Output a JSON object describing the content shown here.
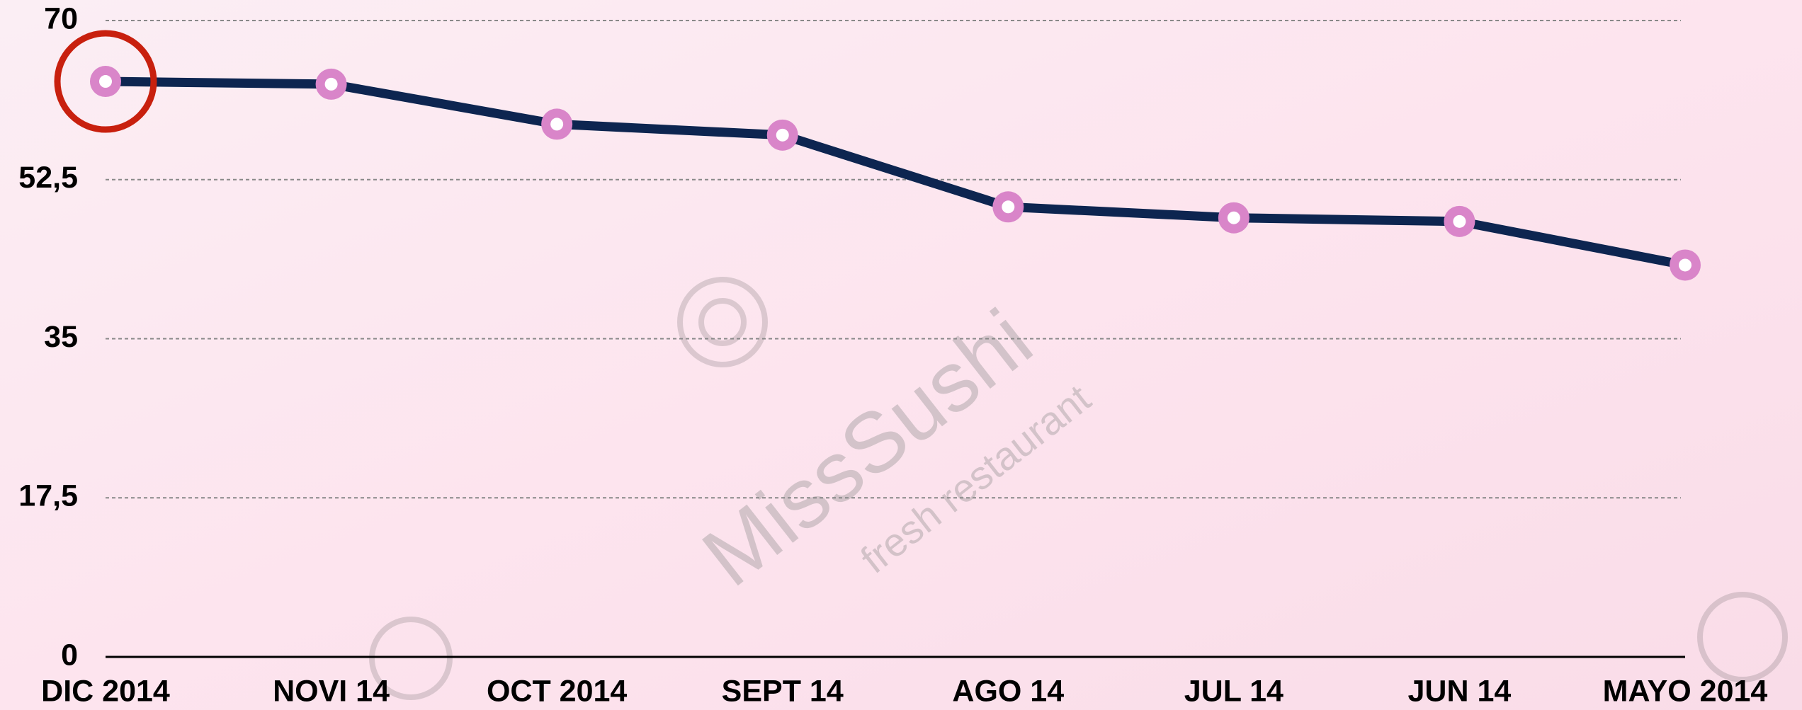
{
  "chart_data": {
    "type": "line",
    "categories": [
      "DIC 2014",
      "NOVI 14",
      "OCT 2014",
      "SEPT 14",
      "AGO 14",
      "JUL 14",
      "JUN 14",
      "MAYO 2014"
    ],
    "series": [
      {
        "name": null,
        "color": "#0d2550",
        "values": [
          63.3,
          63.0,
          58.6,
          57.4,
          49.5,
          48.3,
          47.9,
          43.1
        ]
      }
    ],
    "ylim": [
      0,
      70
    ],
    "yticks": [
      0,
      {
        "value": 17.5,
        "label": "17,5"
      },
      35,
      {
        "value": 52.5,
        "label": "52,5"
      },
      70
    ],
    "grid": true,
    "marker_color": "#d985c9",
    "watermark": {
      "logo": "MissSushi",
      "tagline": "fresh restaurant"
    }
  }
}
